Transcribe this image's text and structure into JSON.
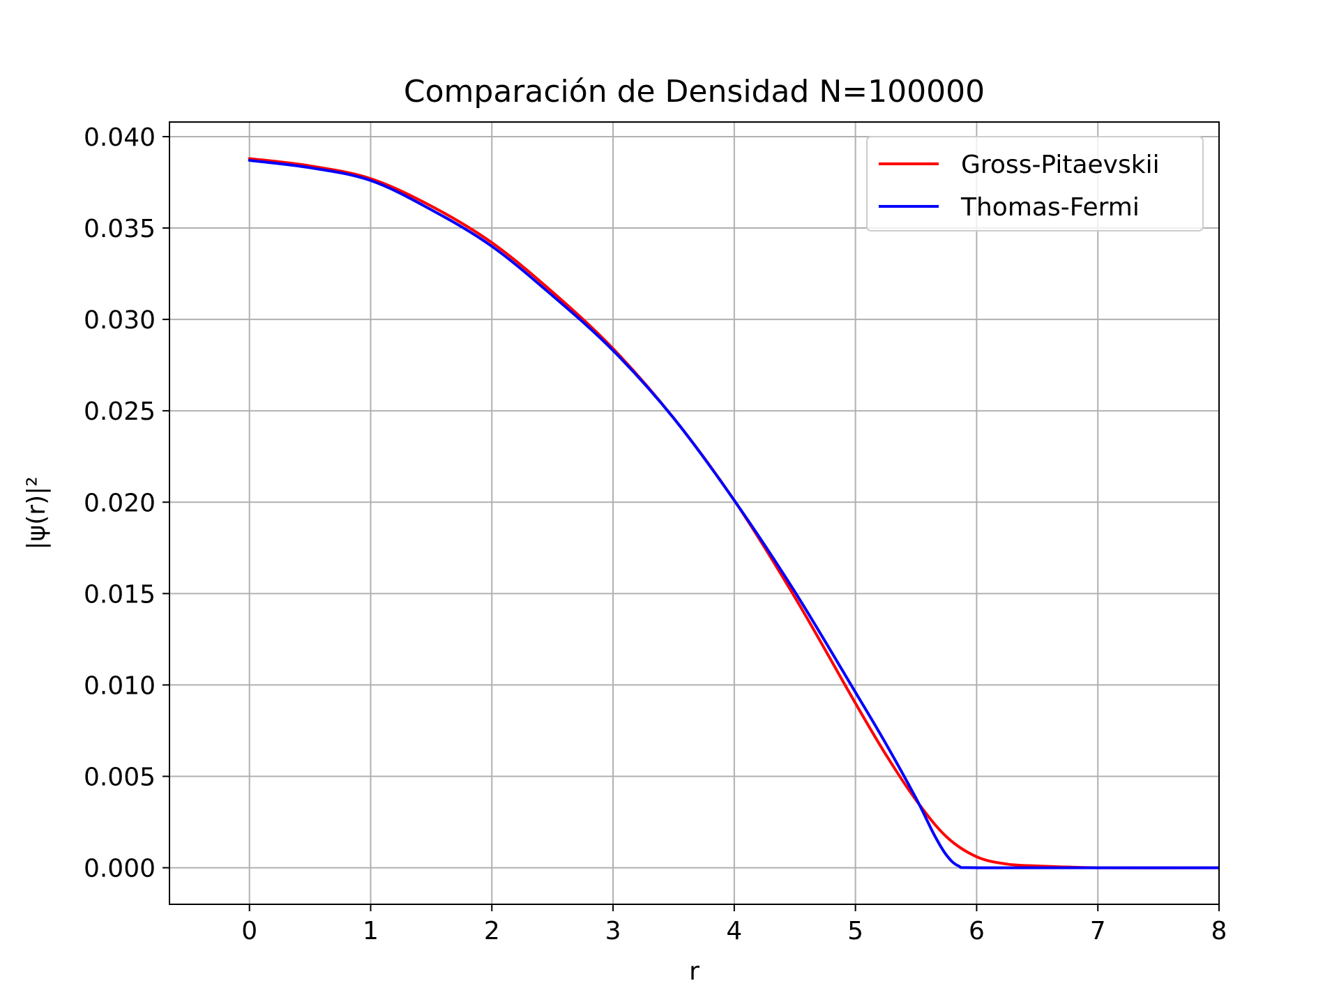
{
  "chart_data": {
    "type": "line",
    "title": "Comparación de Densidad N=100000",
    "xlabel": "r",
    "ylabel": "|ψ(r)|²",
    "xlim": [
      -0.66,
      8.0
    ],
    "ylim": [
      -0.002,
      0.0408
    ],
    "xticks": [
      0,
      1,
      2,
      3,
      4,
      5,
      6,
      7,
      8
    ],
    "xtick_labels": [
      "0",
      "1",
      "2",
      "3",
      "4",
      "5",
      "6",
      "7",
      "8"
    ],
    "yticks": [
      0.0,
      0.005,
      0.01,
      0.015,
      0.02,
      0.025,
      0.03,
      0.035,
      0.04
    ],
    "ytick_labels": [
      "0.000",
      "0.005",
      "0.010",
      "0.015",
      "0.020",
      "0.025",
      "0.030",
      "0.035",
      "0.040"
    ],
    "grid": true,
    "legend_position": "top-right",
    "series": [
      {
        "name": "Gross-Pitaevskii",
        "color": "#ff0000",
        "x": [
          0,
          0.5,
          1.0,
          1.5,
          2.0,
          2.5,
          3.0,
          3.5,
          4.0,
          4.5,
          5.0,
          5.25,
          5.5,
          5.75,
          6.0,
          6.25,
          6.5,
          7.0,
          8.0
        ],
        "y": [
          0.0388,
          0.0384,
          0.0377,
          0.0362,
          0.0342,
          0.0315,
          0.0284,
          0.0246,
          0.0201,
          0.0148,
          0.009,
          0.0062,
          0.0037,
          0.0017,
          0.0006,
          0.0002,
          0.0001,
          0.0,
          0.0
        ]
      },
      {
        "name": "Thomas-Fermi",
        "color": "#0000ff",
        "x": [
          0,
          0.5,
          1.0,
          1.5,
          2.0,
          2.5,
          3.0,
          3.5,
          4.0,
          4.5,
          5.0,
          5.25,
          5.5,
          5.65,
          5.75,
          5.85,
          6.0,
          7.0,
          8.0
        ],
        "y": [
          0.0387,
          0.0383,
          0.0376,
          0.036,
          0.034,
          0.0313,
          0.0283,
          0.0246,
          0.0201,
          0.0151,
          0.0096,
          0.0068,
          0.0038,
          0.0018,
          0.0007,
          0.0001,
          0.0,
          0.0,
          0.0
        ]
      }
    ]
  }
}
